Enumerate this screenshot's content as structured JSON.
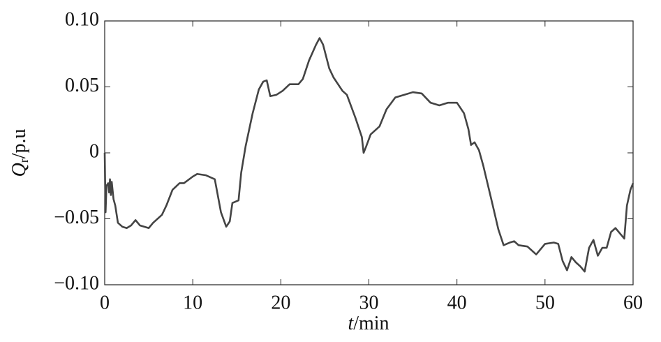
{
  "chart_data": {
    "type": "line",
    "ylabel": {
      "symbol": "Q",
      "subscript": "r",
      "unit": "/p.u"
    },
    "xlabel": {
      "symbol": "t",
      "unit": "/min"
    },
    "color": "#444444",
    "xlim": [
      0,
      60
    ],
    "xticks": [
      0,
      10,
      20,
      30,
      40,
      50,
      60
    ],
    "ylim": [
      -0.1,
      0.1
    ],
    "yticks": [
      {
        "value": -0.1,
        "label": "−0.10"
      },
      {
        "value": -0.05,
        "label": "−0.05"
      },
      0,
      0.05,
      {
        "value": 0.1,
        "label": "0.10"
      }
    ],
    "x": [
      0,
      0.1,
      0.2,
      0.4,
      0.5,
      0.6,
      0.7,
      0.8,
      1.0,
      1.2,
      1.5,
      2,
      2.5,
      3,
      3.5,
      4,
      5,
      5.5,
      6.5,
      7,
      7.7,
      8.5,
      9,
      10,
      10.5,
      11.5,
      12.5,
      13.2,
      13.8,
      14.2,
      14.5,
      15.2,
      15.5,
      16,
      16.8,
      17.5,
      18,
      18.4,
      18.8,
      19.5,
      20.2,
      21,
      22,
      22.5,
      23.2,
      24,
      24.4,
      24.8,
      25.5,
      26,
      27,
      27.5,
      28,
      28.5,
      29.2,
      29.4,
      29.7,
      30.2,
      31.2,
      32,
      33,
      34,
      35,
      36,
      37,
      38,
      39,
      40,
      40.8,
      41.3,
      41.6,
      42,
      42.5,
      43,
      44,
      44.7,
      45.3,
      46,
      46.5,
      47,
      48,
      49,
      50,
      51,
      51.5,
      52,
      52.5,
      53,
      53.5,
      54,
      54.5,
      55,
      55.5,
      56,
      56.5,
      57,
      57.5,
      58,
      59,
      59.3,
      59.7,
      60
    ],
    "values": [
      0.0,
      -0.045,
      -0.025,
      -0.023,
      -0.03,
      -0.02,
      -0.032,
      -0.022,
      -0.035,
      -0.04,
      -0.053,
      -0.056,
      -0.057,
      -0.055,
      -0.051,
      -0.055,
      -0.057,
      -0.053,
      -0.047,
      -0.04,
      -0.028,
      -0.023,
      -0.023,
      -0.018,
      -0.016,
      -0.017,
      -0.02,
      -0.045,
      -0.056,
      -0.052,
      -0.038,
      -0.036,
      -0.015,
      0.005,
      0.03,
      0.048,
      0.054,
      0.055,
      0.043,
      0.044,
      0.047,
      0.052,
      0.052,
      0.056,
      0.07,
      0.082,
      0.087,
      0.082,
      0.064,
      0.057,
      0.047,
      0.044,
      0.035,
      0.026,
      0.012,
      0.0,
      0.005,
      0.014,
      0.02,
      0.033,
      0.042,
      0.044,
      0.046,
      0.045,
      0.038,
      0.036,
      0.038,
      0.038,
      0.03,
      0.018,
      0.006,
      0.008,
      0.002,
      -0.01,
      -0.038,
      -0.058,
      -0.07,
      -0.068,
      -0.067,
      -0.07,
      -0.071,
      -0.077,
      -0.069,
      -0.068,
      -0.069,
      -0.082,
      -0.089,
      -0.079,
      -0.083,
      -0.086,
      -0.09,
      -0.072,
      -0.066,
      -0.078,
      -0.072,
      -0.072,
      -0.06,
      -0.057,
      -0.065,
      -0.04,
      -0.028,
      -0.023
    ]
  }
}
